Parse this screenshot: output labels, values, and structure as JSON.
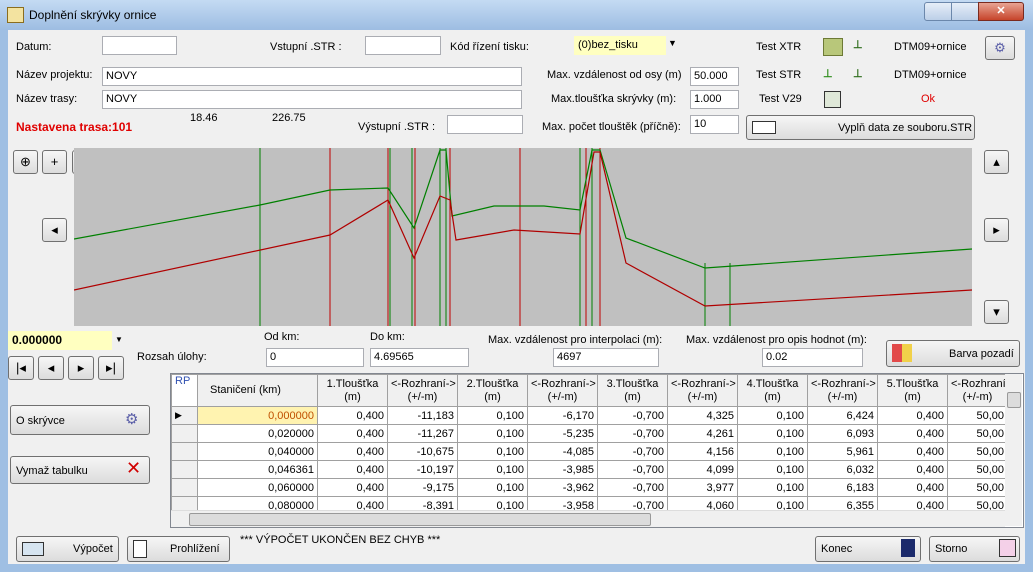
{
  "window": {
    "title": "Doplnění skrývky ornice"
  },
  "form": {
    "datum_label": "Datum:",
    "vstupni_label": "Vstupní .STR :",
    "kod_label": "Kód řízení tisku:",
    "kod_value": "(0)bez_tisku",
    "test_xtr": "Test XTR",
    "xtr_result": "DTM09+ornice",
    "projekt_label": "Název projektu:",
    "projekt_value": "NOVY",
    "max_osa_label": "Max. vzdálenost od osy (m)",
    "max_osa_value": "50.000",
    "test_str": "Test STR",
    "str_result": "DTM09+ornice",
    "trasa_label": "Název trasy:",
    "trasa_value": "NOVY",
    "max_tloustka_label": "Max.tloušťka skrývky (m):",
    "max_tloustka_value": "1.000",
    "test_v29": "Test V29",
    "v29_result": "Ok",
    "nastavena_trasa": "Nastavena trasa:101",
    "coord_a": "18.46",
    "coord_b": "226.75",
    "vystupni_label": "Výstupní .STR :",
    "max_pocet_label": "Max. počet tlouštěk (příčně):",
    "max_pocet_value": "10",
    "vypln_button": "Vyplň data ze souboru.STR"
  },
  "range": {
    "position": "0.000000",
    "rozsah_label": "Rozsah úlohy:",
    "od_label": "Od km:",
    "od_value": "0",
    "do_label": "Do km:",
    "do_value": "4.69565",
    "interp_label": "Max. vzdálenost pro interpolaci (m):",
    "interp_value": "4697",
    "opis_label": "Max. vzdálenost pro opis hodnot (m):",
    "opis_value": "0.02",
    "barva_button": "Barva pozadí"
  },
  "table": {
    "corner": "RP",
    "columns": [
      {
        "name": "Staničení",
        "unit": "(km)"
      },
      {
        "name": "1.Tloušťka",
        "unit": "(m)"
      },
      {
        "name": "<-Rozhraní->",
        "unit": "(+/-m)"
      },
      {
        "name": "2.Tloušťka",
        "unit": "(m)"
      },
      {
        "name": "<-Rozhraní->",
        "unit": "(+/-m)"
      },
      {
        "name": "3.Tloušťka",
        "unit": "(m)"
      },
      {
        "name": "<-Rozhraní->",
        "unit": "(+/-m)"
      },
      {
        "name": "4.Tloušťka",
        "unit": "(m)"
      },
      {
        "name": "<-Rozhraní->",
        "unit": "(+/-m)"
      },
      {
        "name": "5.Tloušťka",
        "unit": "(m)"
      },
      {
        "name": "<-Rozhraní",
        "unit": "(+/-m)"
      }
    ],
    "rows": [
      [
        "0,000000",
        "0,400",
        "-11,183",
        "0,100",
        "-6,170",
        "-0,700",
        "4,325",
        "0,100",
        "6,424",
        "0,400",
        "50,00"
      ],
      [
        "0,020000",
        "0,400",
        "-11,267",
        "0,100",
        "-5,235",
        "-0,700",
        "4,261",
        "0,100",
        "6,093",
        "0,400",
        "50,00"
      ],
      [
        "0,040000",
        "0,400",
        "-10,675",
        "0,100",
        "-4,085",
        "-0,700",
        "4,156",
        "0,100",
        "5,961",
        "0,400",
        "50,00"
      ],
      [
        "0,046361",
        "0,400",
        "-10,197",
        "0,100",
        "-3,985",
        "-0,700",
        "4,099",
        "0,100",
        "6,032",
        "0,400",
        "50,00"
      ],
      [
        "0,060000",
        "0,400",
        "-9,175",
        "0,100",
        "-3,962",
        "-0,700",
        "3,977",
        "0,100",
        "6,183",
        "0,400",
        "50,00"
      ],
      [
        "0,080000",
        "0,400",
        "-8,391",
        "0,100",
        "-3,958",
        "-0,700",
        "4,060",
        "0,100",
        "6,355",
        "0,400",
        "50,00"
      ]
    ]
  },
  "buttons": {
    "o_skryvce": "O skrývce",
    "vymaz": "Vymaž tabulku",
    "vypocet": "Výpočet",
    "prohlizeni": "Prohlížení",
    "konec": "Konec",
    "storno": "Storno"
  },
  "status": "*** VÝPOČET UKONČEN BEZ CHYB ***"
}
